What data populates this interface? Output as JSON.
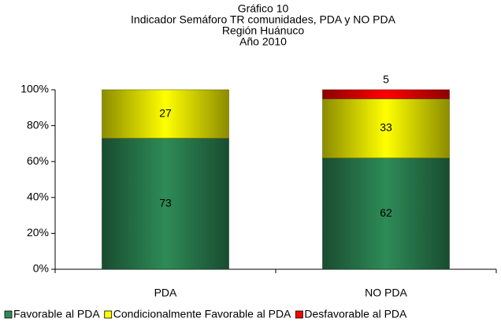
{
  "chart_data": {
    "type": "stacked_bar_100",
    "title": [
      "Gráfico 10",
      "Indicador Semáforo TR comunidades, PDA y NO PDA",
      "Región Huánuco",
      "Año 2010"
    ],
    "categories": [
      "PDA",
      "NO PDA"
    ],
    "series": [
      {
        "name": "Favorable al PDA",
        "color": "#2e8b57",
        "values": [
          73,
          62
        ]
      },
      {
        "name": "Condicionalmente Favorable al PDA",
        "color": "#ffff00",
        "values": [
          27,
          33
        ]
      },
      {
        "name": "Desfavorable al PDA",
        "color": "#ff0000",
        "values": [
          0,
          5
        ]
      }
    ],
    "ylim": [
      0,
      100
    ],
    "yticks": [
      {
        "value": 0,
        "label": "0%"
      },
      {
        "value": 20,
        "label": "20%"
      },
      {
        "value": 40,
        "label": "40%"
      },
      {
        "value": 60,
        "label": "60%"
      },
      {
        "value": 80,
        "label": "80%"
      },
      {
        "value": 100,
        "label": "100%"
      }
    ],
    "legend": "bottom"
  }
}
